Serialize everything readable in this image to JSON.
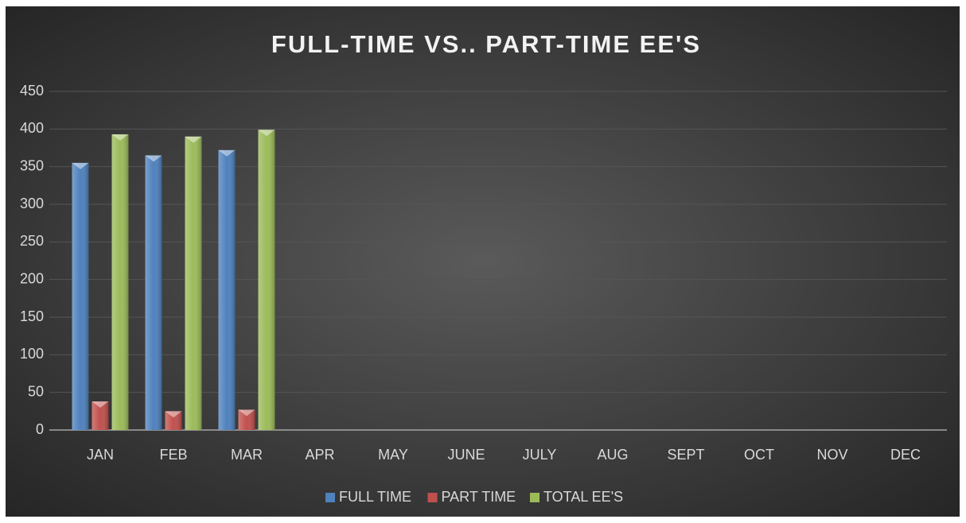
{
  "chart_data": {
    "type": "bar",
    "title": "FULL-TIME VS.. PART-TIME EE'S",
    "categories": [
      "JAN",
      "FEB",
      "MAR",
      "APR",
      "MAY",
      "JUNE",
      "JULY",
      "AUG",
      "SEPT",
      "OCT",
      "NOV",
      "DEC"
    ],
    "series": [
      {
        "name": "FULL TIME",
        "color": "#4f81bd",
        "values": [
          355,
          365,
          372,
          null,
          null,
          null,
          null,
          null,
          null,
          null,
          null,
          null
        ]
      },
      {
        "name": "PART TIME",
        "color": "#c0504d",
        "values": [
          38,
          25,
          27,
          null,
          null,
          null,
          null,
          null,
          null,
          null,
          null,
          null
        ]
      },
      {
        "name": "TOTAL EE'S",
        "color": "#9bbb59",
        "values": [
          393,
          390,
          399,
          null,
          null,
          null,
          null,
          null,
          null,
          null,
          null,
          null
        ]
      }
    ],
    "ylim": [
      0,
      450
    ],
    "yticks": [
      0,
      50,
      100,
      150,
      200,
      250,
      300,
      350,
      400,
      450
    ],
    "grid": true,
    "legend": "bottom"
  }
}
